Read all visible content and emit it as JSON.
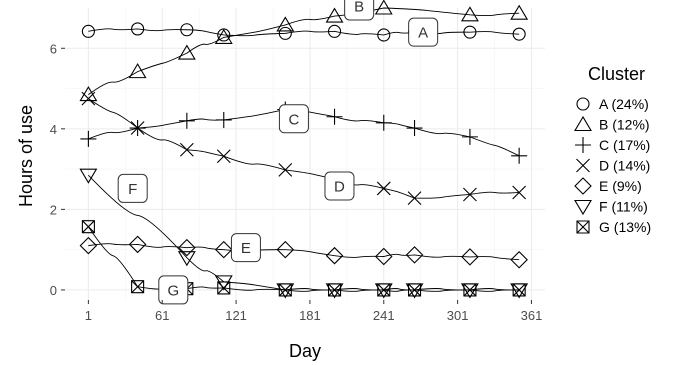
{
  "chart_data": {
    "type": "line",
    "xlabel": "Day",
    "ylabel": "Hours of use",
    "xlim": [
      -18,
      372
    ],
    "ylim": [
      -0.25,
      7.0
    ],
    "x_ticks": [
      1,
      61,
      121,
      181,
      241,
      301,
      361
    ],
    "y_ticks": [
      0,
      2,
      4,
      6
    ],
    "grid": true,
    "legend": {
      "title": "Cluster",
      "position": "right",
      "entries": [
        "A (24%)",
        "B (12%)",
        "C (17%)",
        "D (14%)",
        "E (9%)",
        "F (11%)",
        "G (13%)"
      ]
    },
    "series": [
      {
        "label": "A",
        "shape": "circle",
        "x": [
          1,
          41,
          81,
          111,
          161,
          201,
          241,
          266,
          311,
          351
        ],
        "y": [
          6.42,
          6.48,
          6.46,
          6.33,
          6.37,
          6.42,
          6.33,
          6.4,
          6.4,
          6.35
        ],
        "label_at": [
          273,
          6.4
        ]
      },
      {
        "label": "B",
        "shape": "triangle",
        "x": [
          1,
          41,
          81,
          111,
          161,
          201,
          241,
          311,
          351
        ],
        "y": [
          4.85,
          5.42,
          5.88,
          6.27,
          6.58,
          6.8,
          7.0,
          6.83,
          6.87
        ],
        "label_at": [
          221,
          7.05
        ]
      },
      {
        "label": "C",
        "shape": "plus",
        "x": [
          1,
          41,
          81,
          111,
          161,
          201,
          241,
          266,
          311,
          351
        ],
        "y": [
          3.75,
          4.02,
          4.2,
          4.22,
          4.48,
          4.3,
          4.15,
          4.02,
          3.8,
          3.33
        ],
        "label_at": [
          168,
          4.25
        ]
      },
      {
        "label": "D",
        "shape": "cross",
        "x": [
          1,
          41,
          81,
          111,
          161,
          201,
          241,
          266,
          311,
          351
        ],
        "y": [
          4.75,
          4.02,
          3.48,
          3.32,
          2.98,
          2.75,
          2.52,
          2.28,
          2.37,
          2.42
        ],
        "label_at": [
          205,
          2.58
        ]
      },
      {
        "label": "E",
        "shape": "diamond",
        "x": [
          1,
          41,
          81,
          111,
          161,
          201,
          241,
          266,
          311,
          351
        ],
        "y": [
          1.1,
          1.13,
          1.05,
          1.0,
          1.0,
          0.85,
          0.83,
          0.87,
          0.82,
          0.75
        ],
        "label_at": [
          129,
          1.05
        ]
      },
      {
        "label": "F",
        "shape": "triangle-down",
        "x": [
          1,
          81,
          111,
          161,
          201,
          241,
          266,
          311,
          351
        ],
        "y": [
          2.85,
          0.8,
          0.2,
          0.0,
          0.0,
          0.0,
          0.0,
          0.0,
          0.0
        ],
        "label_at": [
          37,
          2.52
        ]
      },
      {
        "label": "G",
        "shape": "boxcross",
        "x": [
          1,
          41,
          81,
          111,
          161,
          201,
          241,
          266,
          311,
          351
        ],
        "y": [
          1.57,
          0.08,
          0.03,
          0.05,
          0.0,
          0.0,
          0.0,
          0.0,
          0.0,
          0.0
        ],
        "label_at": [
          70,
          0.0
        ]
      }
    ]
  }
}
